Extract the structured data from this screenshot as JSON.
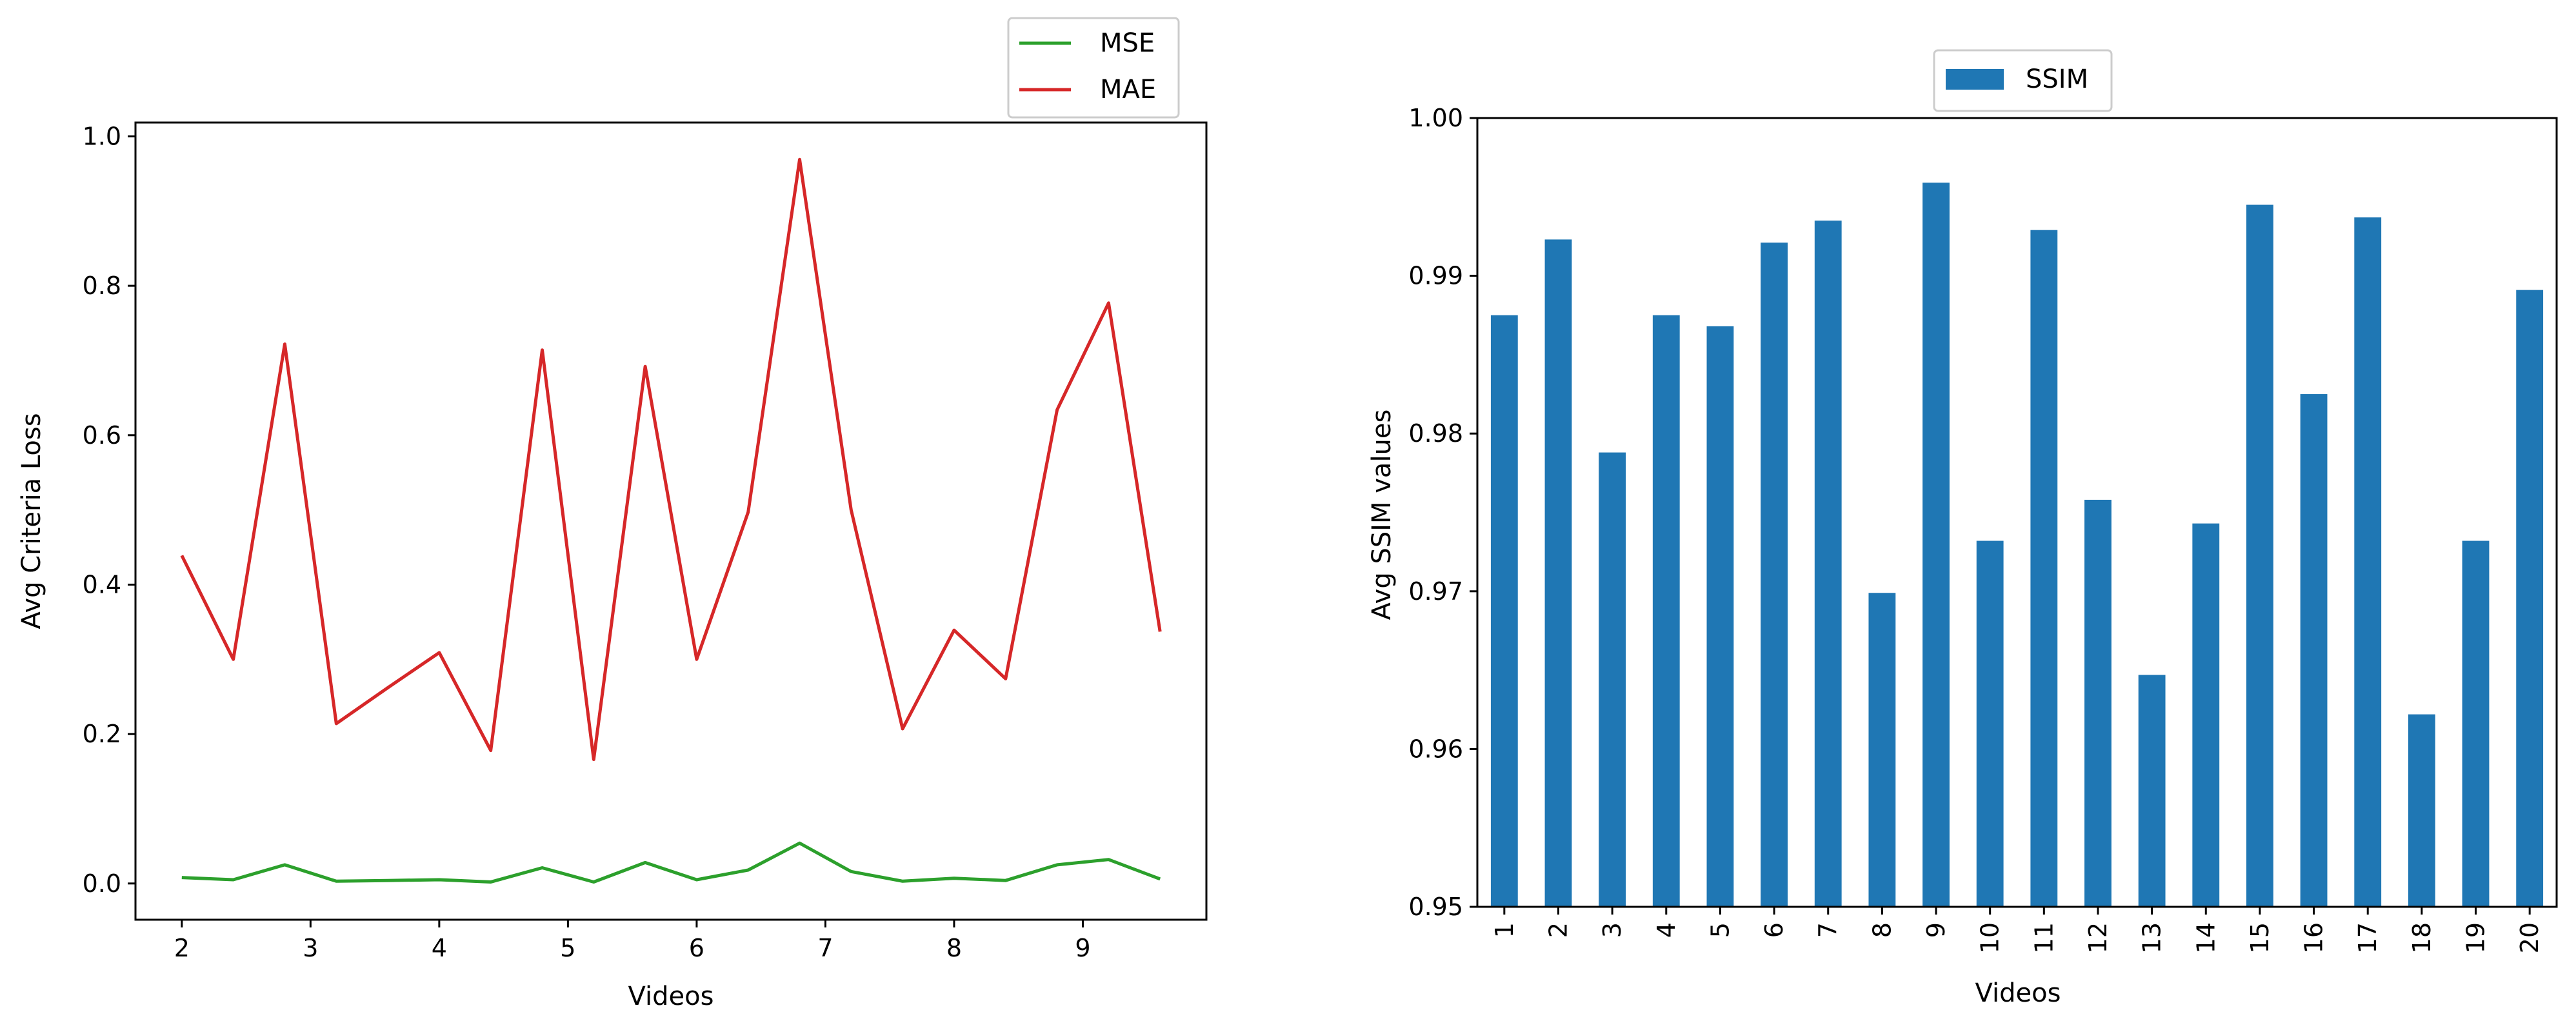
{
  "chart_data": [
    {
      "type": "line",
      "title": "",
      "xlabel": "Videos",
      "ylabel": "Avg Criteria Loss",
      "xlim": [
        1.64,
        9.96
      ],
      "ylim": [
        -0.0485,
        1.0185
      ],
      "xticks": [
        2,
        3,
        4,
        5,
        6,
        7,
        8,
        9
      ],
      "yticks": [
        0.0,
        0.2,
        0.4,
        0.6,
        0.8,
        1.0
      ],
      "ytick_labels": [
        "0.0",
        "0.2",
        "0.4",
        "0.6",
        "0.8",
        "1.0"
      ],
      "legend_position": "upper-right-outside",
      "x": [
        2.0,
        2.4,
        2.8,
        3.2,
        3.6,
        4.0,
        4.4,
        4.8,
        5.2,
        5.6,
        6.0,
        6.4,
        6.8,
        7.2,
        7.6,
        8.0,
        8.4,
        8.8,
        9.2,
        9.6
      ],
      "series": [
        {
          "name": "MSE",
          "color": "#2ca02c",
          "values": [
            0.008,
            0.005,
            0.025,
            0.003,
            0.004,
            0.005,
            0.002,
            0.021,
            0.002,
            0.028,
            0.005,
            0.018,
            0.054,
            0.016,
            0.003,
            0.007,
            0.004,
            0.025,
            0.032,
            0.006
          ]
        },
        {
          "name": "MAE",
          "color": "#d62728",
          "values": [
            0.439,
            0.3,
            0.722,
            0.214,
            0.262,
            0.309,
            0.178,
            0.714,
            0.166,
            0.692,
            0.3,
            0.497,
            0.969,
            0.5,
            0.207,
            0.339,
            0.274,
            0.634,
            0.777,
            0.337
          ]
        }
      ]
    },
    {
      "type": "bar",
      "title": "",
      "xlabel": "Videos",
      "ylabel": "Avg SSIM values",
      "ylim": [
        0.95,
        1.0
      ],
      "yticks": [
        0.95,
        0.96,
        0.97,
        0.98,
        0.99,
        1.0
      ],
      "ytick_labels": [
        "0.95",
        "0.96",
        "0.97",
        "0.98",
        "0.99",
        "1.00"
      ],
      "legend_position": "upper-center",
      "categories": [
        "1",
        "2",
        "3",
        "4",
        "5",
        "6",
        "7",
        "8",
        "9",
        "10",
        "11",
        "12",
        "13",
        "14",
        "15",
        "16",
        "17",
        "18",
        "19",
        "20"
      ],
      "series": [
        {
          "name": "SSIM",
          "color": "#1f77b4",
          "values": [
            0.9875,
            0.9923,
            0.9788,
            0.9875,
            0.9868,
            0.9921,
            0.9935,
            0.9699,
            0.9959,
            0.9732,
            0.9929,
            0.9758,
            0.9647,
            0.9743,
            0.9945,
            0.9825,
            0.9937,
            0.9622,
            0.9732,
            0.9891
          ]
        }
      ]
    }
  ]
}
